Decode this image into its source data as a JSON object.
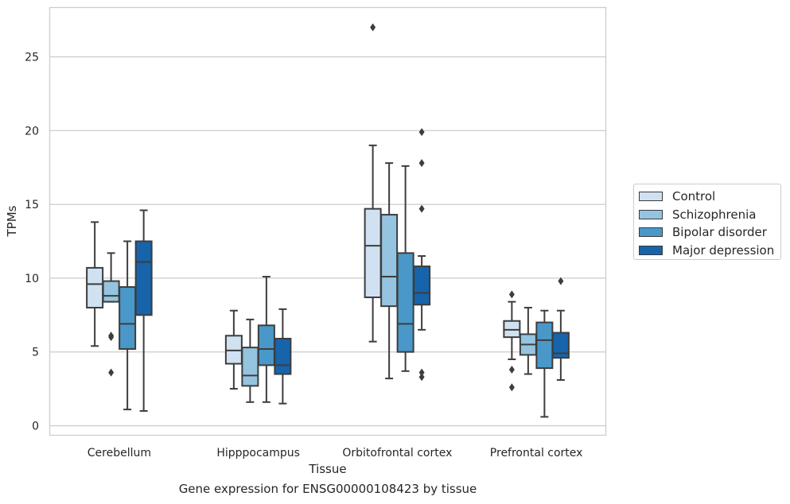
{
  "caption": "Gene expression for ENSG00000108423 by tissue",
  "chart_data": {
    "type": "boxplot",
    "xlabel": "Tissue",
    "ylabel": "TPMs",
    "ylim": [
      -0.5,
      28
    ],
    "yticks": [
      0,
      5,
      10,
      15,
      20,
      25
    ],
    "grid": "horizontal",
    "legend_position": "right",
    "categories": [
      "Cerebellum",
      "Hipppocampus",
      "Orbitofrontal cortex",
      "Prefrontal cortex"
    ],
    "series": [
      {
        "name": "Control",
        "color": "#d0e1f2",
        "boxes": [
          {
            "whislo": 5.4,
            "q1": 8.0,
            "med": 9.6,
            "q3": 10.7,
            "whishi": 13.8,
            "fliers": []
          },
          {
            "whislo": 2.5,
            "q1": 4.2,
            "med": 5.1,
            "q3": 6.1,
            "whishi": 7.8,
            "fliers": []
          },
          {
            "whislo": 5.7,
            "q1": 8.7,
            "med": 12.2,
            "q3": 14.7,
            "whishi": 19.0,
            "fliers": [
              27.0
            ]
          },
          {
            "whislo": 4.5,
            "q1": 6.0,
            "med": 6.5,
            "q3": 7.1,
            "whishi": 8.4,
            "fliers": [
              8.9,
              3.8,
              2.6
            ]
          }
        ]
      },
      {
        "name": "Schizophrenia",
        "color": "#94c4df",
        "boxes": [
          {
            "whislo": 8.4,
            "q1": 8.4,
            "med": 8.8,
            "q3": 9.8,
            "whishi": 11.7,
            "fliers": [
              6.1,
              6.0,
              3.6
            ]
          },
          {
            "whislo": 1.6,
            "q1": 2.7,
            "med": 3.4,
            "q3": 5.3,
            "whishi": 7.2,
            "fliers": []
          },
          {
            "whislo": 3.2,
            "q1": 8.1,
            "med": 10.1,
            "q3": 14.3,
            "whishi": 17.8,
            "fliers": []
          },
          {
            "whislo": 3.5,
            "q1": 4.8,
            "med": 5.5,
            "q3": 6.2,
            "whishi": 8.0,
            "fliers": []
          }
        ]
      },
      {
        "name": "Bipolar disorder",
        "color": "#4a98c9",
        "boxes": [
          {
            "whislo": 1.1,
            "q1": 5.2,
            "med": 6.9,
            "q3": 9.4,
            "whishi": 12.5,
            "fliers": []
          },
          {
            "whislo": 1.6,
            "q1": 4.1,
            "med": 5.2,
            "q3": 6.8,
            "whishi": 10.1,
            "fliers": []
          },
          {
            "whislo": 3.7,
            "q1": 5.0,
            "med": 6.9,
            "q3": 11.7,
            "whishi": 17.6,
            "fliers": []
          },
          {
            "whislo": 0.6,
            "q1": 3.9,
            "med": 5.8,
            "q3": 7.0,
            "whishi": 7.8,
            "fliers": []
          }
        ]
      },
      {
        "name": "Major depression",
        "color": "#1764ab",
        "boxes": [
          {
            "whislo": 1.0,
            "q1": 7.5,
            "med": 11.1,
            "q3": 12.5,
            "whishi": 14.6,
            "fliers": []
          },
          {
            "whislo": 1.5,
            "q1": 3.5,
            "med": 4.1,
            "q3": 5.9,
            "whishi": 7.9,
            "fliers": []
          },
          {
            "whislo": 6.5,
            "q1": 8.2,
            "med": 9.0,
            "q3": 10.8,
            "whishi": 11.5,
            "fliers": [
              19.9,
              17.8,
              14.7,
              3.6,
              3.3
            ]
          },
          {
            "whislo": 3.1,
            "q1": 4.6,
            "med": 4.9,
            "q3": 6.3,
            "whishi": 7.8,
            "fliers": [
              9.8
            ]
          }
        ]
      }
    ]
  }
}
